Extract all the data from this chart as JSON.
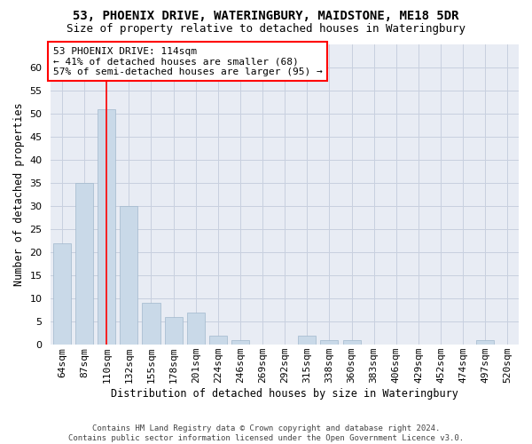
{
  "title": "53, PHOENIX DRIVE, WATERINGBURY, MAIDSTONE, ME18 5DR",
  "subtitle": "Size of property relative to detached houses in Wateringbury",
  "xlabel": "Distribution of detached houses by size in Wateringbury",
  "ylabel": "Number of detached properties",
  "categories": [
    "64sqm",
    "87sqm",
    "110sqm",
    "132sqm",
    "155sqm",
    "178sqm",
    "201sqm",
    "224sqm",
    "246sqm",
    "269sqm",
    "292sqm",
    "315sqm",
    "338sqm",
    "360sqm",
    "383sqm",
    "406sqm",
    "429sqm",
    "452sqm",
    "474sqm",
    "497sqm",
    "520sqm"
  ],
  "values": [
    22,
    35,
    51,
    30,
    9,
    6,
    7,
    2,
    1,
    0,
    0,
    2,
    1,
    1,
    0,
    0,
    0,
    0,
    0,
    1,
    0
  ],
  "bar_color": "#c9d9e8",
  "bar_edgecolor": "#a0b8cc",
  "grid_color": "#c8d0df",
  "background_color": "#e8ecf4",
  "redline_bin_index": 2,
  "annotation_line1": "53 PHOENIX DRIVE: 114sqm",
  "annotation_line2": "← 41% of detached houses are smaller (68)",
  "annotation_line3": "57% of semi-detached houses are larger (95) →",
  "footer1": "Contains HM Land Registry data © Crown copyright and database right 2024.",
  "footer2": "Contains public sector information licensed under the Open Government Licence v3.0.",
  "ylim_max": 65,
  "title_fontsize": 10,
  "subtitle_fontsize": 9,
  "xlabel_fontsize": 8.5,
  "ylabel_fontsize": 8.5,
  "tick_fontsize": 8,
  "annotation_fontsize": 8,
  "footer_fontsize": 6.5
}
